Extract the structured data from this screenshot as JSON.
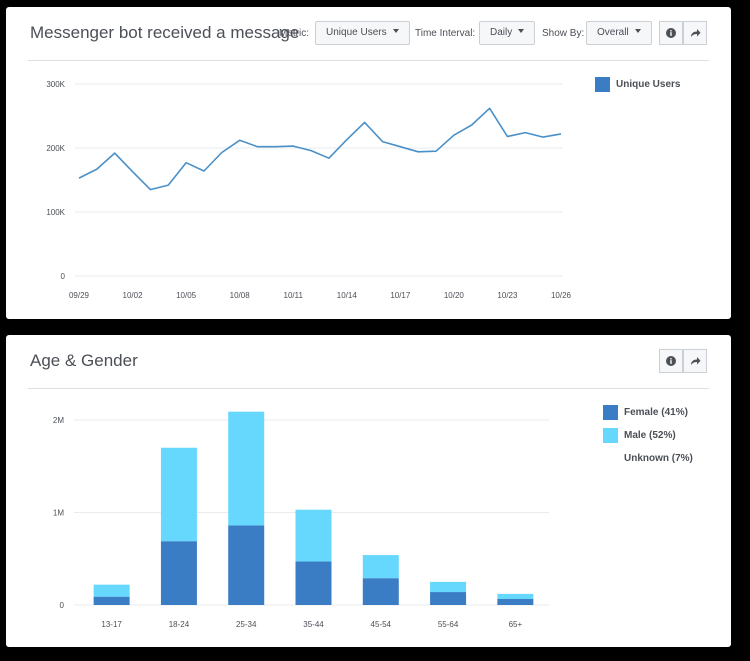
{
  "line_panel": {
    "title": "Messenger bot received a message",
    "metric_label": "Metric:",
    "metric_value": "Unique Users",
    "interval_label": "Time Interval:",
    "interval_value": "Daily",
    "showby_label": "Show By:",
    "showby_value": "Overall",
    "info_icon": "info-icon",
    "share_icon": "share-icon"
  },
  "bar_panel": {
    "title": "Age & Gender",
    "info_icon": "info-icon",
    "share_icon": "share-icon"
  },
  "chart_data": [
    {
      "type": "line",
      "title": "Messenger bot received a message",
      "y_ticks": [
        "0",
        "100K",
        "200K",
        "300K"
      ],
      "ylim": [
        0,
        300000
      ],
      "x_tick_labels": [
        "09/29",
        "10/02",
        "10/05",
        "10/08",
        "10/11",
        "10/14",
        "10/17",
        "10/20",
        "10/23",
        "10/26"
      ],
      "x_tick_indices": [
        0,
        3,
        6,
        9,
        12,
        15,
        18,
        21,
        24,
        27
      ],
      "series": [
        {
          "name": "Unique Users",
          "color": "#4a90c8",
          "values": [
            153000,
            167000,
            192000,
            163000,
            135000,
            142000,
            177000,
            164000,
            193000,
            212000,
            202000,
            202000,
            203000,
            196000,
            184000,
            213000,
            240000,
            210000,
            202000,
            194000,
            195000,
            220000,
            236000,
            262000,
            218000,
            224000,
            217000,
            222000
          ]
        }
      ],
      "grid": true,
      "legend": "right"
    },
    {
      "type": "bar",
      "stacked": true,
      "title": "Age & Gender",
      "categories": [
        "13-17",
        "18-24",
        "25-34",
        "35-44",
        "45-54",
        "55-64",
        "65+"
      ],
      "y_ticks": [
        "0",
        "1M",
        "2M"
      ],
      "ylim": [
        0,
        2000000
      ],
      "series": [
        {
          "name": "Female (41%)",
          "color": "#3b7dc4",
          "values": [
            90000,
            690000,
            860000,
            470000,
            290000,
            140000,
            65000
          ]
        },
        {
          "name": "Male (52%)",
          "color": "#66d7fd",
          "values": [
            130000,
            1010000,
            1230000,
            560000,
            250000,
            110000,
            55000
          ]
        }
      ],
      "extra_legend": "Unknown (7%)",
      "grid": true,
      "legend": "right"
    }
  ]
}
